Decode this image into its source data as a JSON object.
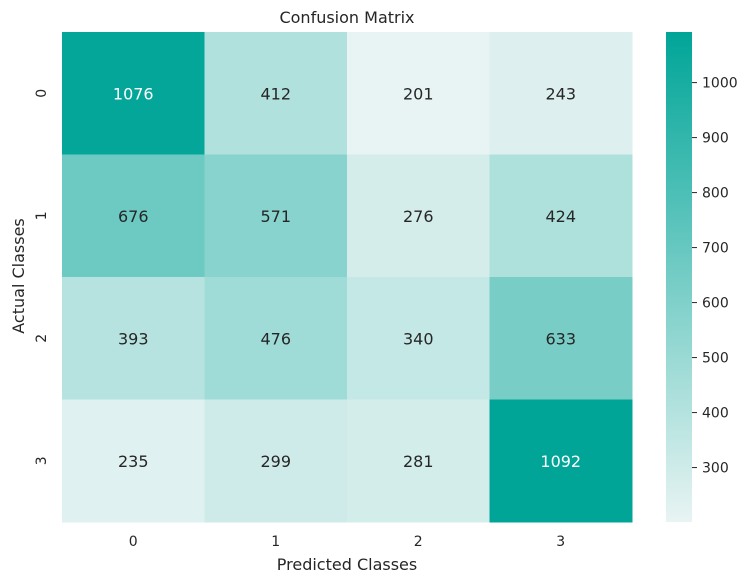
{
  "chart_data": {
    "type": "heatmap",
    "title": "Confusion Matrix",
    "xlabel": "Predicted Classes",
    "ylabel": "Actual Classes",
    "x_categories": [
      "0",
      "1",
      "2",
      "3"
    ],
    "y_categories": [
      "0",
      "1",
      "2",
      "3"
    ],
    "values": [
      [
        1076,
        412,
        201,
        243
      ],
      [
        676,
        571,
        276,
        424
      ],
      [
        393,
        476,
        340,
        633
      ],
      [
        235,
        299,
        281,
        1092
      ]
    ],
    "colorbar": {
      "min": 201,
      "max": 1092,
      "ticks": [
        300,
        400,
        500,
        600,
        700,
        800,
        900,
        1000
      ],
      "color_low": "#e8f4f3",
      "color_high": "#00a598"
    },
    "annotation_text_color_dark": "#262626",
    "annotation_text_color_light": "#ffffff"
  }
}
